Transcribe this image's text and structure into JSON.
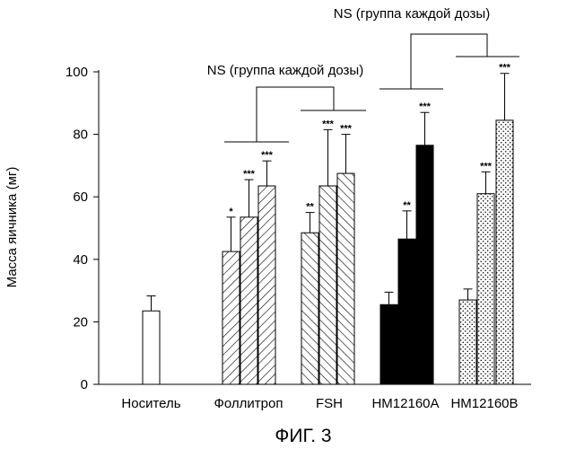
{
  "chart_data": {
    "type": "bar",
    "figure_label": "ФИГ. 3",
    "ylabel": "Масса яичника (мг)",
    "xlabel": "",
    "ylim": [
      0,
      100
    ],
    "yticks": [
      0,
      20,
      40,
      60,
      80,
      100
    ],
    "categories": [
      "Носитель",
      "Фоллитроп",
      "FSH",
      "HM12160A",
      "HM12160B"
    ],
    "bars": [
      {
        "group": "Носитель",
        "value": 23.5,
        "error": 4.8,
        "sig": "",
        "fill": "white"
      },
      {
        "group": "Фоллитроп",
        "value": 42.5,
        "error": 11,
        "sig": "*",
        "fill": "hatch-forward"
      },
      {
        "group": "Фоллитроп",
        "value": 53.5,
        "error": 12,
        "sig": "***",
        "fill": "hatch-forward"
      },
      {
        "group": "Фоллитроп",
        "value": 63.5,
        "error": 8,
        "sig": "***",
        "fill": "hatch-forward"
      },
      {
        "group": "FSH",
        "value": 48.5,
        "error": 6.5,
        "sig": "**",
        "fill": "hatch-back"
      },
      {
        "group": "FSH",
        "value": 63.5,
        "error": 18,
        "sig": "***",
        "fill": "hatch-back"
      },
      {
        "group": "FSH",
        "value": 67.5,
        "error": 12.5,
        "sig": "***",
        "fill": "hatch-back"
      },
      {
        "group": "HM12160A",
        "value": 25.5,
        "error": 4,
        "sig": "",
        "fill": "black"
      },
      {
        "group": "HM12160A",
        "value": 46.5,
        "error": 9,
        "sig": "**",
        "fill": "black"
      },
      {
        "group": "HM12160A",
        "value": 76.5,
        "error": 10.5,
        "sig": "***",
        "fill": "black"
      },
      {
        "group": "HM12160B",
        "value": 27,
        "error": 3.5,
        "sig": "",
        "fill": "dots"
      },
      {
        "group": "HM12160B",
        "value": 61,
        "error": 7,
        "sig": "***",
        "fill": "dots"
      },
      {
        "group": "HM12160B",
        "value": 84.5,
        "error": 15,
        "sig": "***",
        "fill": "dots"
      }
    ],
    "annotations": [
      {
        "text": "NS (группа каждой дозы)",
        "compares": [
          "Фоллитроп",
          "FSH"
        ]
      },
      {
        "text": "NS (группа каждой дозы)",
        "compares": [
          "HM12160A",
          "HM12160B"
        ]
      }
    ],
    "grid": false,
    "legend": "none"
  }
}
